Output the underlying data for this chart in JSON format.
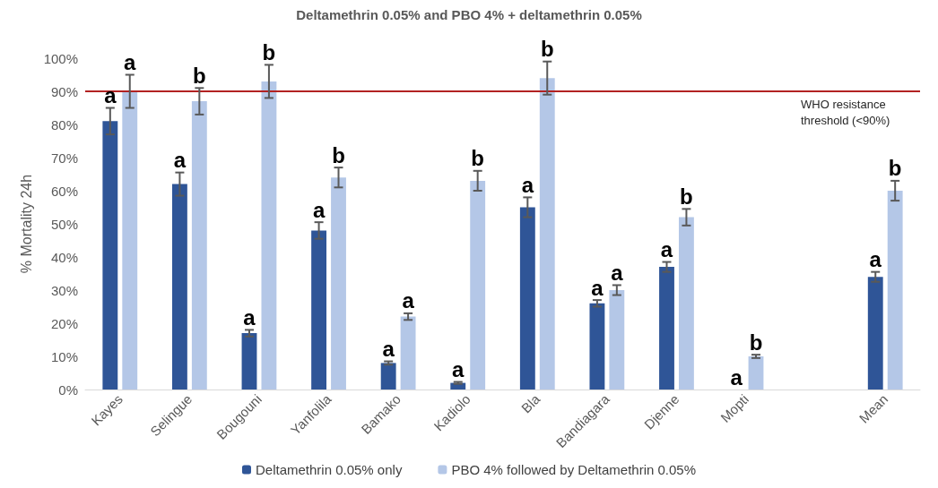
{
  "chart_data": {
    "type": "bar",
    "title": "Deltamethrin 0.05% and PBO 4% + deltamethrin 0.05%",
    "ylabel": "% Mortality 24h",
    "categories": [
      "Kayes",
      "Selingue",
      "Bougouni",
      "Yanfolila",
      "Bamako",
      "Kadiolo",
      "Bla",
      "Bandiagara",
      "Djenne",
      "Mopti",
      null,
      "Mean"
    ],
    "series": [
      {
        "name": "Deltamethrin 0.05% only",
        "color": "#2f5597",
        "values": [
          81,
          62,
          17,
          48,
          8,
          2,
          55,
          26,
          37,
          0,
          null,
          34
        ],
        "errors": [
          4,
          3.5,
          1,
          2.5,
          0.5,
          0.3,
          3,
          1,
          1.5,
          null,
          null,
          1.5
        ],
        "value_labels": [
          "a",
          "a",
          "a",
          "a",
          "a",
          "a",
          "a",
          "a",
          "a",
          "a",
          null,
          "a"
        ]
      },
      {
        "name": "PBO 4% followed by Deltamethrin 0.05%",
        "color": "#b4c7e7",
        "values": [
          90,
          87,
          93,
          64,
          22,
          63,
          94,
          30,
          52,
          10,
          null,
          60
        ],
        "errors": [
          5,
          4,
          5,
          3,
          1,
          3,
          5,
          1.5,
          2.5,
          0.5,
          null,
          3
        ],
        "value_labels": [
          "a",
          "b",
          "b",
          "b",
          "a",
          "b",
          "b",
          "a",
          "b",
          "b",
          null,
          "b"
        ]
      }
    ],
    "ylim": [
      0,
      100
    ],
    "yticks": [
      {
        "value": 0,
        "label": "0%"
      },
      {
        "value": 10,
        "label": "10%"
      },
      {
        "value": 20,
        "label": "20%"
      },
      {
        "value": 30,
        "label": "30%"
      },
      {
        "value": 40,
        "label": "40%"
      },
      {
        "value": 50,
        "label": "50%"
      },
      {
        "value": 60,
        "label": "60%"
      },
      {
        "value": 70,
        "label": "70%"
      },
      {
        "value": 80,
        "label": "80%"
      },
      {
        "value": 90,
        "label": "90%"
      },
      {
        "value": 100,
        "label": "100%"
      }
    ],
    "ref_lines": [
      {
        "axis": "y",
        "value": 90,
        "label": "WHO resistance threshold (<90%)",
        "color": "#b22222"
      }
    ],
    "grid": false,
    "legend": "bottom"
  }
}
